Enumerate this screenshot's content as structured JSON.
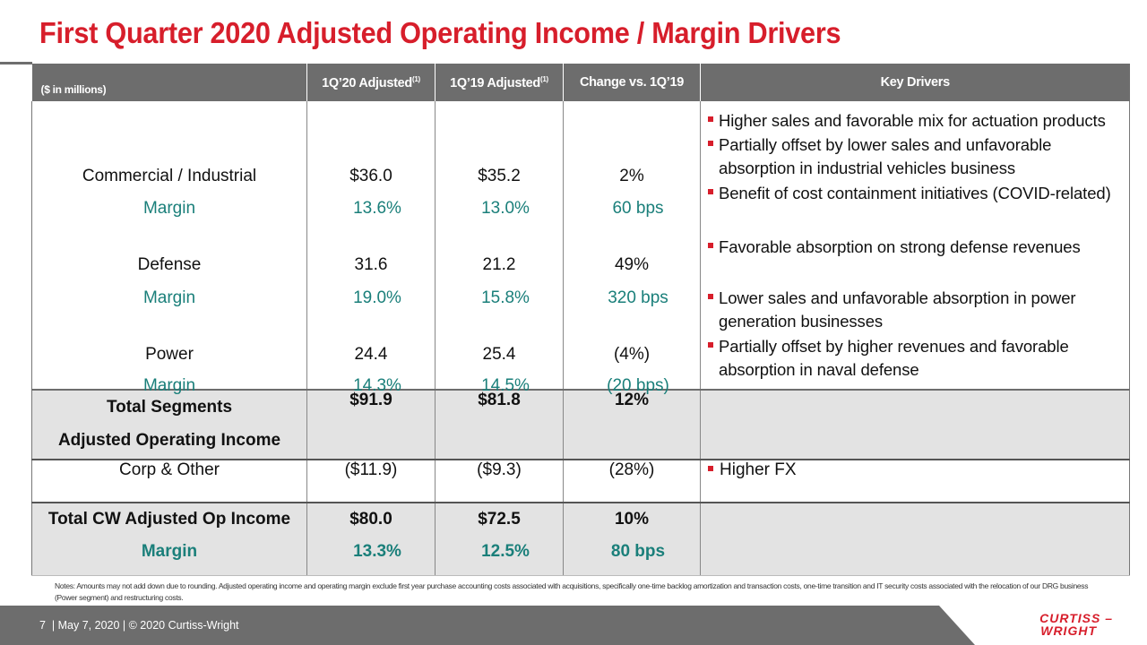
{
  "title": "First Quarter 2020 Adjusted Operating Income / Margin Drivers",
  "table": {
    "headers": [
      "($ in millions)",
      "1Q’20 Adjusted",
      "1Q’19 Adjusted",
      "Change vs. 1Q’19",
      "Key Drivers"
    ],
    "footnote_marker": "(1)",
    "segments": [
      {
        "name": "Commercial / Industrial",
        "margin_label": "Margin",
        "q20": "$36.0",
        "q19": "$35.2",
        "change": "2%",
        "q20_margin": "13.6%",
        "q19_margin": "13.0%",
        "change_margin": "60 bps",
        "drivers": [
          "Higher sales and favorable mix for actuation products",
          "Partially offset by lower sales and unfavorable absorption in industrial vehicles business",
          "Benefit of cost containment initiatives (COVID-related)"
        ]
      },
      {
        "name": "Defense",
        "margin_label": "Margin",
        "q20": "31.6",
        "q19": "21.2",
        "change": "49%",
        "q20_margin": "19.0%",
        "q19_margin": "15.8%",
        "change_margin": "320 bps",
        "drivers": [
          "Favorable absorption on strong defense revenues"
        ]
      },
      {
        "name": "Power",
        "margin_label": "Margin",
        "q20": "24.4",
        "q19": "25.4",
        "change": "(4%)",
        "q20_margin": "14.3%",
        "q19_margin": "14.5%",
        "change_margin": "(20 bps)",
        "drivers": [
          "Lower sales and unfavorable absorption in power generation businesses",
          "Partially offset by higher revenues and favorable absorption in naval defense"
        ]
      }
    ],
    "total_segments": {
      "label_line1": "Total Segments",
      "label_line2": "Adjusted Operating Income",
      "q20": "$91.9",
      "q19": "$81.8",
      "change": "12%"
    },
    "corp_other": {
      "label": "Corp & Other",
      "q20": "($11.9)",
      "q19": "($9.3)",
      "change": "(28%)",
      "driver": "Higher FX"
    },
    "total_cw": {
      "label": "Total CW Adjusted Op Income",
      "margin_label": "Margin",
      "q20": "$80.0",
      "q19": "$72.5",
      "change": "10%",
      "q20_margin": "13.3%",
      "q19_margin": "12.5%",
      "change_margin": "80 bps"
    }
  },
  "notes": "Notes: Amounts may not add down due to rounding. Adjusted operating income and operating margin exclude first year purchase accounting costs associated with acquisitions, specifically one-time backlog amortization and transaction costs, one-time transition and IT security costs associated with the relocation of our DRG business (Power segment) and restructuring costs.",
  "footer": {
    "page": "7",
    "text": "| May 7, 2020 | © 2020 Curtiss-Wright",
    "logo_line1": "CURTISS –",
    "logo_line2": "WRIGHT"
  },
  "colors": {
    "accent_red": "#d71e2b",
    "margin_teal": "#1a7f7a",
    "header_gray": "#6d6d6d",
    "total_row_gray": "#e3e3e3"
  }
}
